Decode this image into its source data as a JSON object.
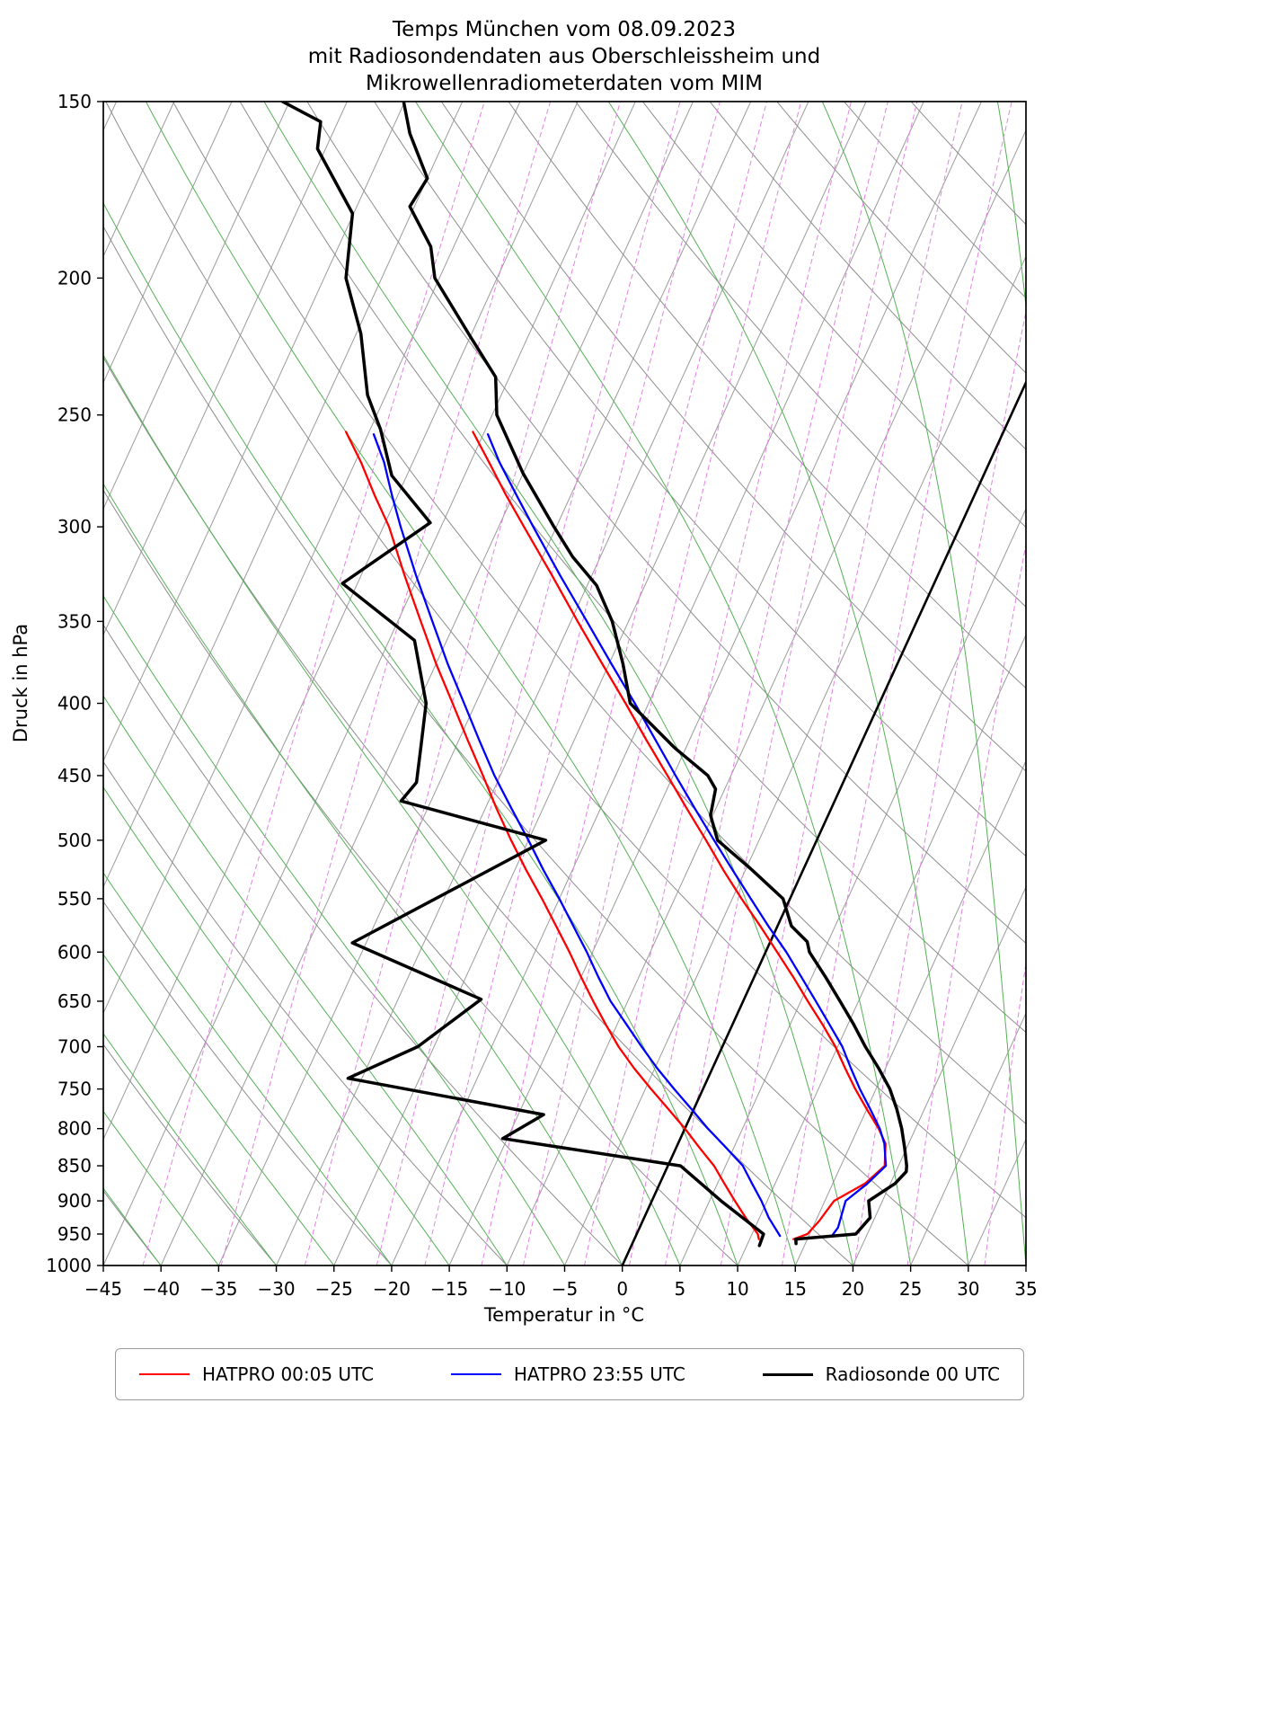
{
  "title": {
    "line1": "Temps München vom 08.09.2023",
    "line2": "mit Radiosondendaten aus Oberschleissheim und",
    "line3": "Mikrowellenradiometerdaten vom MIM"
  },
  "axes": {
    "xlabel": "Temperatur in °C",
    "ylabel": "Druck in hPa",
    "x_tick_values": [
      -45,
      -40,
      -35,
      -30,
      -25,
      -20,
      -15,
      -10,
      -5,
      0,
      5,
      10,
      15,
      20,
      25,
      30,
      35
    ],
    "x_tick_labels": [
      "−45",
      "−40",
      "−35",
      "−30",
      "−25",
      "−20",
      "−15",
      "−10",
      "−5",
      "0",
      "5",
      "10",
      "15",
      "20",
      "25",
      "30",
      "35"
    ],
    "y_tick_values": [
      150,
      200,
      250,
      300,
      350,
      400,
      450,
      500,
      550,
      600,
      650,
      700,
      750,
      800,
      850,
      900,
      950,
      1000
    ],
    "y_tick_labels": [
      "150",
      "200",
      "250",
      "300",
      "350",
      "400",
      "450",
      "500",
      "550",
      "600",
      "650",
      "700",
      "750",
      "800",
      "850",
      "900",
      "950",
      "1000"
    ]
  },
  "legend": {
    "items": [
      {
        "label": "HATPRO 00:05 UTC",
        "color": "#ff0000",
        "width": 2.5
      },
      {
        "label": "HATPRO 23:55 UTC",
        "color": "#0000ff",
        "width": 2.5
      },
      {
        "label": "Radiosonde 00 UTC",
        "color": "#000000",
        "width": 3.5
      }
    ]
  },
  "chart_data": {
    "type": "line",
    "projection": "skew-t-log-p",
    "xlim": [
      -45,
      35
    ],
    "plim": [
      150,
      1000
    ],
    "skew_deg_per_decade": 56,
    "title": "Temps München vom 08.09.2023 mit Radiosondendaten aus Oberschleissheim und Mikrowellenradiometerdaten vom MIM",
    "xlabel": "Temperatur in °C",
    "ylabel": "Druck in hPa",
    "background": {
      "isotherms": {
        "start": -110,
        "end": 35,
        "step": 5,
        "color": "#9b9b9b",
        "width": 1.0,
        "highlight_value": 0,
        "highlight_color": "#000000",
        "highlight_width": 2.6
      },
      "dry_adiabats": {
        "start": -40,
        "end": 160,
        "step": 10,
        "color": "#8d8d8d",
        "width": 1.0
      },
      "moist_adiabats": {
        "start": -40,
        "end": 40,
        "step": 5,
        "color": "#55b055",
        "width": 1.0
      },
      "mixing_ratio_g_per_kg": [
        0.1,
        0.2,
        0.4,
        0.7,
        1,
        1.5,
        2,
        3,
        4,
        5,
        7,
        10,
        15,
        20,
        30
      ],
      "mixing_ratio_color": "#e382e3",
      "mixing_ratio_width": 1.0,
      "mixing_ratio_dash": "5 4"
    },
    "series": [
      {
        "name": "HATPRO 00:05 UTC temperature",
        "color": "#ff0000",
        "width": 2.3,
        "points_p_T": [
          [
            958,
            13.8
          ],
          [
            950,
            14.8
          ],
          [
            930,
            15.3
          ],
          [
            900,
            15.8
          ],
          [
            875,
            17.8
          ],
          [
            850,
            18.8
          ],
          [
            820,
            18.0
          ],
          [
            800,
            16.8
          ],
          [
            775,
            15.0
          ],
          [
            750,
            13.2
          ],
          [
            725,
            11.5
          ],
          [
            700,
            9.8
          ],
          [
            675,
            7.8
          ],
          [
            650,
            5.6
          ],
          [
            625,
            3.4
          ],
          [
            600,
            1.0
          ],
          [
            575,
            -1.5
          ],
          [
            550,
            -4.2
          ],
          [
            525,
            -6.9
          ],
          [
            500,
            -9.6
          ],
          [
            475,
            -12.5
          ],
          [
            450,
            -15.5
          ],
          [
            425,
            -18.7
          ],
          [
            400,
            -22.0
          ],
          [
            375,
            -25.6
          ],
          [
            350,
            -29.4
          ],
          [
            325,
            -33.4
          ],
          [
            300,
            -37.8
          ],
          [
            285,
            -40.6
          ],
          [
            270,
            -43.4
          ],
          [
            257,
            -46.0
          ]
        ]
      },
      {
        "name": "HATPRO 00:05 UTC dewpoint",
        "color": "#ff0000",
        "width": 2.3,
        "points_p_T": [
          [
            958,
            10.8
          ],
          [
            950,
            10.5
          ],
          [
            925,
            8.8
          ],
          [
            900,
            7.2
          ],
          [
            875,
            5.6
          ],
          [
            850,
            4.0
          ],
          [
            825,
            2.0
          ],
          [
            800,
            0.0
          ],
          [
            775,
            -2.2
          ],
          [
            750,
            -4.5
          ],
          [
            725,
            -6.8
          ],
          [
            700,
            -9.0
          ],
          [
            675,
            -11.0
          ],
          [
            650,
            -13.0
          ],
          [
            625,
            -15.0
          ],
          [
            600,
            -17.0
          ],
          [
            575,
            -19.2
          ],
          [
            550,
            -21.5
          ],
          [
            525,
            -24.0
          ],
          [
            500,
            -26.5
          ],
          [
            475,
            -29.0
          ],
          [
            450,
            -31.5
          ],
          [
            425,
            -34.2
          ],
          [
            400,
            -37.0
          ],
          [
            375,
            -40.0
          ],
          [
            350,
            -43.0
          ],
          [
            325,
            -46.2
          ],
          [
            300,
            -49.5
          ],
          [
            285,
            -52.0
          ],
          [
            270,
            -54.5
          ],
          [
            257,
            -57.0
          ]
        ]
      },
      {
        "name": "HATPRO 23:55 UTC temperature",
        "color": "#0000ff",
        "width": 2.3,
        "points_p_T": [
          [
            953,
            17.0
          ],
          [
            940,
            17.2
          ],
          [
            920,
            17.0
          ],
          [
            900,
            16.8
          ],
          [
            875,
            18.0
          ],
          [
            850,
            18.9
          ],
          [
            820,
            17.9
          ],
          [
            800,
            16.9
          ],
          [
            775,
            15.3
          ],
          [
            750,
            13.6
          ],
          [
            725,
            12.0
          ],
          [
            700,
            10.4
          ],
          [
            675,
            8.4
          ],
          [
            650,
            6.3
          ],
          [
            625,
            4.1
          ],
          [
            600,
            1.8
          ],
          [
            575,
            -0.8
          ],
          [
            550,
            -3.4
          ],
          [
            525,
            -6.1
          ],
          [
            500,
            -8.9
          ],
          [
            475,
            -11.8
          ],
          [
            450,
            -14.8
          ],
          [
            425,
            -17.9
          ],
          [
            400,
            -21.2
          ],
          [
            375,
            -24.8
          ],
          [
            350,
            -28.6
          ],
          [
            325,
            -32.7
          ],
          [
            300,
            -37.0
          ],
          [
            285,
            -39.7
          ],
          [
            270,
            -42.5
          ],
          [
            258,
            -44.6
          ]
        ]
      },
      {
        "name": "HATPRO 23:55 UTC dewpoint",
        "color": "#0000ff",
        "width": 2.3,
        "points_p_T": [
          [
            953,
            12.5
          ],
          [
            925,
            10.8
          ],
          [
            900,
            9.5
          ],
          [
            875,
            8.0
          ],
          [
            850,
            6.5
          ],
          [
            825,
            4.3
          ],
          [
            800,
            2.0
          ],
          [
            775,
            -0.2
          ],
          [
            750,
            -2.5
          ],
          [
            725,
            -4.8
          ],
          [
            700,
            -7.0
          ],
          [
            675,
            -9.2
          ],
          [
            650,
            -11.5
          ],
          [
            625,
            -13.5
          ],
          [
            600,
            -15.5
          ],
          [
            575,
            -17.7
          ],
          [
            550,
            -20.0
          ],
          [
            525,
            -22.5
          ],
          [
            500,
            -25.0
          ],
          [
            475,
            -27.7
          ],
          [
            450,
            -30.5
          ],
          [
            425,
            -33.2
          ],
          [
            400,
            -36.0
          ],
          [
            375,
            -39.0
          ],
          [
            350,
            -42.0
          ],
          [
            325,
            -45.2
          ],
          [
            300,
            -48.5
          ],
          [
            285,
            -50.5
          ],
          [
            270,
            -52.5
          ],
          [
            258,
            -54.5
          ]
        ]
      },
      {
        "name": "Radiosonde 00 UTC temperature",
        "color": "#000000",
        "width": 3.5,
        "points_p_T": [
          [
            965,
            14.2
          ],
          [
            958,
            14.0
          ],
          [
            950,
            19.0
          ],
          [
            925,
            19.6
          ],
          [
            900,
            18.8
          ],
          [
            875,
            20.4
          ],
          [
            858,
            20.9
          ],
          [
            850,
            20.7
          ],
          [
            825,
            19.8
          ],
          [
            800,
            18.8
          ],
          [
            775,
            17.6
          ],
          [
            750,
            16.2
          ],
          [
            725,
            14.4
          ],
          [
            700,
            12.4
          ],
          [
            675,
            10.5
          ],
          [
            650,
            8.4
          ],
          [
            625,
            6.2
          ],
          [
            600,
            3.8
          ],
          [
            590,
            3.2
          ],
          [
            575,
            1.2
          ],
          [
            550,
            -0.6
          ],
          [
            525,
            -4.4
          ],
          [
            500,
            -8.6
          ],
          [
            480,
            -10.2
          ],
          [
            460,
            -10.8
          ],
          [
            450,
            -12.0
          ],
          [
            430,
            -16.0
          ],
          [
            400,
            -21.6
          ],
          [
            375,
            -23.8
          ],
          [
            350,
            -26.4
          ],
          [
            330,
            -29.2
          ],
          [
            315,
            -32.4
          ],
          [
            300,
            -35.2
          ],
          [
            275,
            -40.0
          ],
          [
            250,
            -44.6
          ],
          [
            235,
            -46.2
          ],
          [
            220,
            -50.0
          ],
          [
            200,
            -55.4
          ],
          [
            190,
            -57.0
          ],
          [
            178,
            -60.4
          ],
          [
            170,
            -60.0
          ],
          [
            158,
            -63.3
          ],
          [
            150,
            -65.1
          ]
        ]
      },
      {
        "name": "Radiosonde 00 UTC dewpoint",
        "color": "#000000",
        "width": 3.5,
        "points_p_T": [
          [
            968,
            11.1
          ],
          [
            950,
            11.0
          ],
          [
            900,
            6.0
          ],
          [
            850,
            1.1
          ],
          [
            813,
            -15.4
          ],
          [
            782,
            -12.8
          ],
          [
            737,
            -31.2
          ],
          [
            700,
            -26.4
          ],
          [
            648,
            -22.8
          ],
          [
            591,
            -36.2
          ],
          [
            500,
            -23.5
          ],
          [
            469,
            -37.6
          ],
          [
            455,
            -37.0
          ],
          [
            430,
            -38.0
          ],
          [
            400,
            -39.3
          ],
          [
            361,
            -42.8
          ],
          [
            329,
            -51.3
          ],
          [
            298,
            -46.1
          ],
          [
            276,
            -51.3
          ],
          [
            256,
            -54.1
          ],
          [
            242,
            -56.6
          ],
          [
            219,
            -59.6
          ],
          [
            200,
            -63.1
          ],
          [
            180,
            -65.1
          ],
          [
            162,
            -70.7
          ],
          [
            155,
            -71.5
          ],
          [
            150,
            -75.6
          ]
        ]
      }
    ]
  }
}
